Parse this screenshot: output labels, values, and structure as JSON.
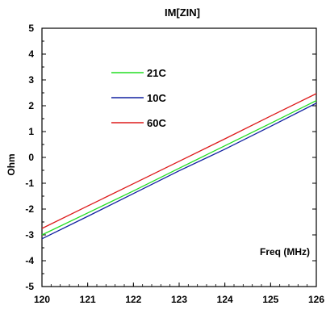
{
  "chart_data": {
    "type": "line",
    "title": "IM[ZIN]",
    "xlabel": "Freq (MHz)",
    "ylabel": "Ohm",
    "xlim": [
      120,
      126
    ],
    "ylim": [
      -5,
      5
    ],
    "x_ticks": [
      "120",
      "121",
      "122",
      "123",
      "124",
      "125",
      "126"
    ],
    "y_ticks": [
      "5",
      "4",
      "3",
      "2",
      "1",
      "0",
      "-1",
      "-2",
      "-3",
      "-4",
      "-5"
    ],
    "grid": false,
    "legend_position": "upper-left",
    "series": [
      {
        "name": "21C",
        "color": "#22dd22",
        "x": [
          120,
          121,
          122,
          123,
          124,
          125,
          126
        ],
        "y": [
          -3.0,
          -2.15,
          -1.3,
          -0.42,
          0.45,
          1.32,
          2.2
        ]
      },
      {
        "name": "10C",
        "color": "#1020a0",
        "x": [
          120,
          121,
          122,
          123,
          124,
          125,
          126
        ],
        "y": [
          -3.15,
          -2.28,
          -1.4,
          -0.52,
          0.32,
          1.2,
          2.1
        ]
      },
      {
        "name": "60C",
        "color": "#dd1a1a",
        "x": [
          120,
          121,
          122,
          123,
          124,
          125,
          126
        ],
        "y": [
          -2.75,
          -1.88,
          -1.02,
          -0.15,
          0.72,
          1.6,
          2.47
        ]
      }
    ]
  }
}
